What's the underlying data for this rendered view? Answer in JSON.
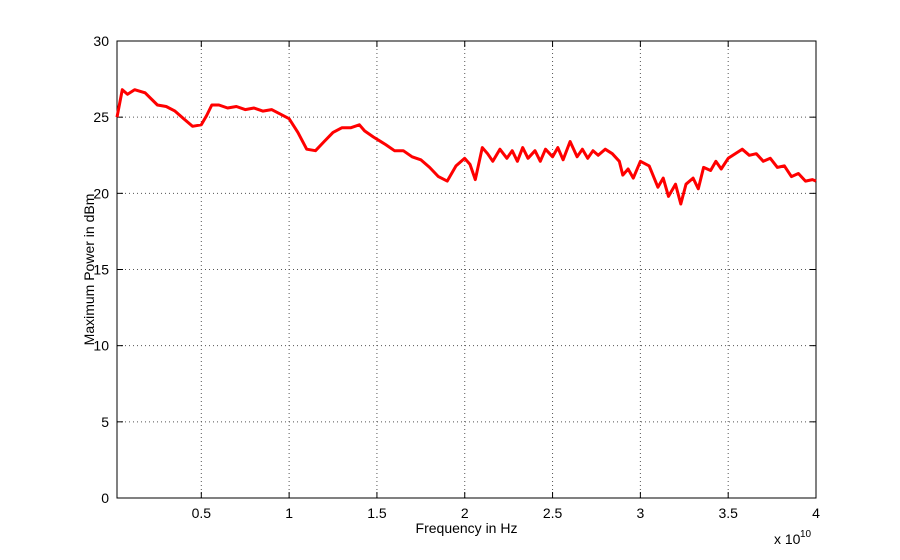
{
  "chart_data": {
    "type": "line",
    "xlabel": "Frequency in Hz",
    "ylabel": "Maximum Power in dBm",
    "x_multiplier_text": "x 10",
    "x_multiplier_exp": "10",
    "xlim": [
      0.02,
      4.0
    ],
    "ylim": [
      0,
      30
    ],
    "grid": true,
    "x_ticks": [
      0.5,
      1,
      1.5,
      2,
      2.5,
      3,
      3.5,
      4
    ],
    "x_tick_labels": [
      "0.5",
      "1",
      "1.5",
      "2",
      "2.5",
      "3",
      "3.5",
      "4"
    ],
    "y_ticks": [
      0,
      5,
      10,
      15,
      20,
      25,
      30
    ],
    "y_tick_labels": [
      "0",
      "5",
      "10",
      "15",
      "20",
      "25",
      "30"
    ],
    "series": [
      {
        "color": "#ff0000",
        "x": [
          0.02,
          0.05,
          0.08,
          0.12,
          0.18,
          0.25,
          0.3,
          0.35,
          0.4,
          0.45,
          0.5,
          0.53,
          0.56,
          0.6,
          0.65,
          0.7,
          0.75,
          0.8,
          0.85,
          0.9,
          0.95,
          1.0,
          1.05,
          1.1,
          1.15,
          1.2,
          1.25,
          1.3,
          1.35,
          1.4,
          1.43,
          1.48,
          1.55,
          1.6,
          1.65,
          1.7,
          1.75,
          1.8,
          1.85,
          1.9,
          1.95,
          2.0,
          2.03,
          2.06,
          2.1,
          2.13,
          2.16,
          2.2,
          2.24,
          2.27,
          2.3,
          2.33,
          2.36,
          2.4,
          2.43,
          2.46,
          2.5,
          2.53,
          2.56,
          2.6,
          2.64,
          2.67,
          2.7,
          2.73,
          2.76,
          2.8,
          2.84,
          2.88,
          2.9,
          2.93,
          2.96,
          3.0,
          3.05,
          3.1,
          3.13,
          3.16,
          3.2,
          3.23,
          3.26,
          3.3,
          3.33,
          3.36,
          3.4,
          3.43,
          3.46,
          3.5,
          3.54,
          3.58,
          3.62,
          3.66,
          3.7,
          3.74,
          3.78,
          3.82,
          3.86,
          3.9,
          3.94,
          3.98,
          4.0
        ],
        "y": [
          25.0,
          26.8,
          26.5,
          26.8,
          26.6,
          25.8,
          25.7,
          25.4,
          24.9,
          24.4,
          24.5,
          25.1,
          25.8,
          25.8,
          25.6,
          25.7,
          25.5,
          25.6,
          25.4,
          25.5,
          25.2,
          24.9,
          24.0,
          22.9,
          22.8,
          23.4,
          24.0,
          24.3,
          24.3,
          24.5,
          24.1,
          23.7,
          23.2,
          22.8,
          22.8,
          22.4,
          22.2,
          21.7,
          21.1,
          20.8,
          21.8,
          22.3,
          21.9,
          20.9,
          23.0,
          22.6,
          22.1,
          22.9,
          22.3,
          22.8,
          22.1,
          23.0,
          22.3,
          22.8,
          22.1,
          22.9,
          22.4,
          23.0,
          22.2,
          23.4,
          22.4,
          22.9,
          22.3,
          22.8,
          22.5,
          22.9,
          22.6,
          22.1,
          21.2,
          21.6,
          21.0,
          22.1,
          21.8,
          20.4,
          21.0,
          19.8,
          20.6,
          19.3,
          20.6,
          21.0,
          20.3,
          21.7,
          21.5,
          22.1,
          21.6,
          22.3,
          22.6,
          22.9,
          22.5,
          22.6,
          22.1,
          22.3,
          21.7,
          21.8,
          21.1,
          21.3,
          20.8,
          20.9,
          20.8
        ]
      }
    ]
  }
}
